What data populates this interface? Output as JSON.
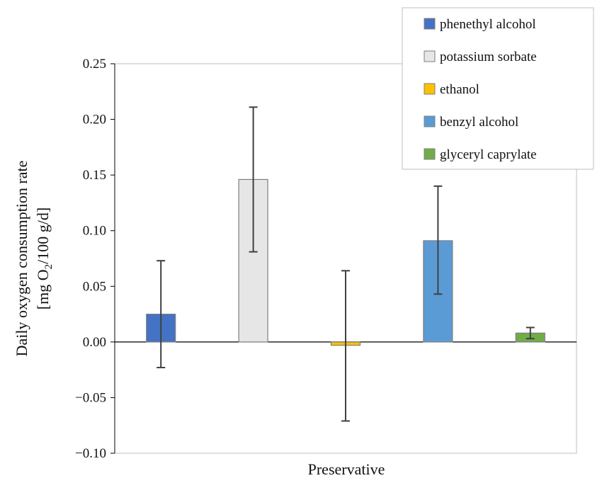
{
  "chart_data": {
    "type": "bar",
    "categories": [
      "phenethyl alcohol",
      "potassium sorbate",
      "ethanol",
      "benzyl alcohol",
      "glyceryl caprylate"
    ],
    "values": [
      0.025,
      0.146,
      -0.003,
      0.091,
      0.008
    ],
    "error_low": [
      -0.023,
      0.081,
      -0.071,
      0.043,
      0.003
    ],
    "error_high": [
      0.073,
      0.211,
      0.064,
      0.14,
      0.013
    ],
    "colors": [
      "#4472C4",
      "#E7E6E6",
      "#FFC000",
      "#5B9BD5",
      "#70AD47"
    ],
    "bar_border": "#7F7F7F",
    "error_bar_color": "#404040",
    "xlabel": "Preservative",
    "ylabel_line1": "Daily oxygen consumption rate",
    "ylabel_line2_prefix": "[mg O",
    "ylabel_line2_sub": "2",
    "ylabel_line2_suffix": "/100 g/d]",
    "ylim": [
      -0.1,
      0.25
    ],
    "yticks": [
      -0.1,
      -0.05,
      0.0,
      0.05,
      0.1,
      0.15,
      0.2,
      0.25
    ],
    "ytick_labels": [
      "−0.10",
      "−0.05",
      "0.00",
      "0.05",
      "0.10",
      "0.15",
      "0.20",
      "0.25"
    ],
    "grid": false,
    "legend_position": "top-right"
  }
}
